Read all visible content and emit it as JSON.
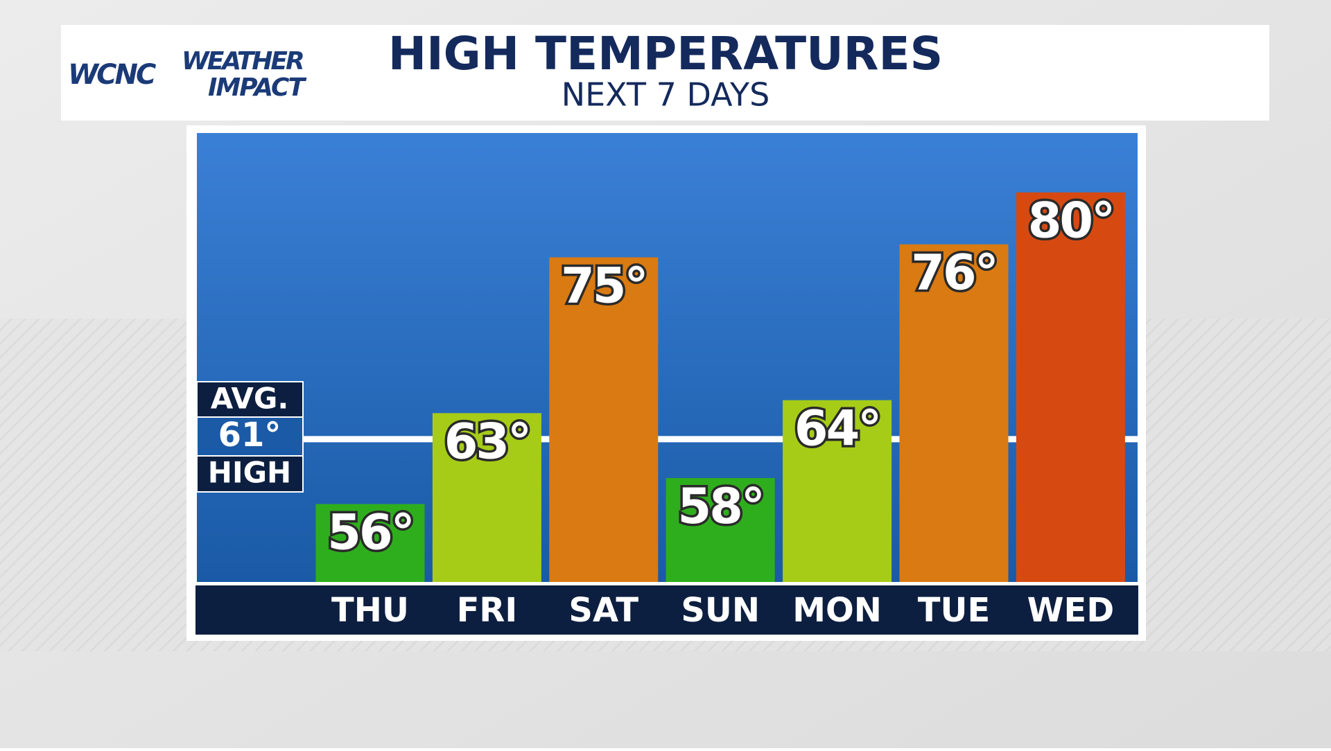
{
  "logo": {
    "station": "WCNC",
    "brand_top": "WEATHER",
    "brand_bottom": "IMPACT"
  },
  "chart_data": {
    "type": "bar",
    "title": "HIGH TEMPERATURES",
    "subtitle": "NEXT 7 DAYS",
    "categories": [
      "THU",
      "FRI",
      "SAT",
      "SUN",
      "MON",
      "TUE",
      "WED"
    ],
    "values": [
      56,
      63,
      75,
      58,
      64,
      76,
      80
    ],
    "value_labels": [
      "56°",
      "63°",
      "75°",
      "58°",
      "64°",
      "76°",
      "80°"
    ],
    "colors": [
      "#2fae1d",
      "#a6cc18",
      "#d97a12",
      "#2fae1d",
      "#a6cc18",
      "#d97a12",
      "#d64a12"
    ],
    "ylim": [
      50,
      85
    ],
    "average": {
      "label_top": "AVG.",
      "value": 61,
      "value_label": "61°",
      "label_bottom": "HIGH"
    }
  }
}
